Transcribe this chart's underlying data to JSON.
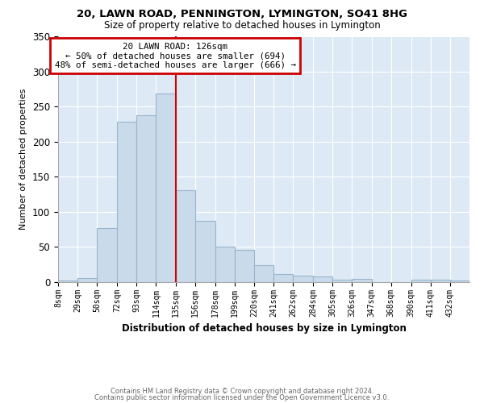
{
  "title1": "20, LAWN ROAD, PENNINGTON, LYMINGTON, SO41 8HG",
  "title2": "Size of property relative to detached houses in Lymington",
  "xlabel": "Distribution of detached houses by size in Lymington",
  "ylabel": "Number of detached properties",
  "categories": [
    "8sqm",
    "29sqm",
    "50sqm",
    "72sqm",
    "93sqm",
    "114sqm",
    "135sqm",
    "156sqm",
    "178sqm",
    "199sqm",
    "220sqm",
    "241sqm",
    "262sqm",
    "284sqm",
    "305sqm",
    "326sqm",
    "347sqm",
    "368sqm",
    "390sqm",
    "411sqm",
    "432sqm"
  ],
  "bar_values": [
    2,
    6,
    77,
    228,
    238,
    268,
    131,
    87,
    50,
    46,
    24,
    12,
    9,
    8,
    4,
    5,
    0,
    0,
    3,
    4,
    2
  ],
  "bar_color": "#c9daea",
  "bar_edge_color": "#9ab5cc",
  "vline_color": "#cc0000",
  "vline_x": 135,
  "annotation_text": "20 LAWN ROAD: 126sqm\n← 50% of detached houses are smaller (694)\n48% of semi-detached houses are larger (666) →",
  "annotation_box_facecolor": "#ffffff",
  "annotation_box_edgecolor": "#cc0000",
  "footer1": "Contains HM Land Registry data © Crown copyright and database right 2024.",
  "footer2": "Contains public sector information licensed under the Open Government Licence v3.0.",
  "plot_bg_color": "#ddeaf5",
  "ylim": [
    0,
    350
  ],
  "yticks": [
    0,
    50,
    100,
    150,
    200,
    250,
    300,
    350
  ],
  "bin_edges": [
    8,
    29,
    50,
    72,
    93,
    114,
    135,
    156,
    178,
    199,
    220,
    241,
    262,
    284,
    305,
    326,
    347,
    368,
    390,
    411,
    432,
    453
  ]
}
